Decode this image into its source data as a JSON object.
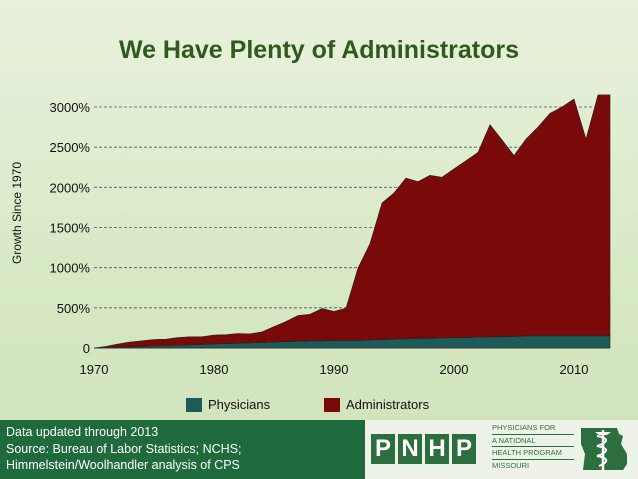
{
  "title": "We Have Plenty of Administrators",
  "chart_data": {
    "type": "area",
    "stacked": true,
    "title": "We Have Plenty of Administrators",
    "ylabel": "Growth Since 1970",
    "xlabel": "",
    "xlim": [
      1970,
      2013
    ],
    "ylim": [
      0,
      3000
    ],
    "yticks": [
      0,
      500,
      1000,
      1500,
      2000,
      2500,
      3000
    ],
    "ytick_labels": [
      "0",
      "500%",
      "1000%",
      "1500%",
      "2000%",
      "2500%",
      "3000%"
    ],
    "xticks": [
      1970,
      1980,
      1990,
      2000,
      2010
    ],
    "grid": "horizontal dashed",
    "legend_position": "bottom",
    "x": [
      1970,
      1971,
      1972,
      1973,
      1974,
      1975,
      1976,
      1977,
      1978,
      1979,
      1980,
      1981,
      1982,
      1983,
      1984,
      1985,
      1986,
      1987,
      1988,
      1989,
      1990,
      1991,
      1992,
      1993,
      1994,
      1995,
      1996,
      1997,
      1998,
      1999,
      2000,
      2001,
      2002,
      2003,
      2004,
      2005,
      2006,
      2007,
      2008,
      2009,
      2010,
      2011,
      2012,
      2013
    ],
    "series": [
      {
        "name": "Physicians",
        "color": "#1d5a5a",
        "values": [
          0,
          5,
          10,
          15,
          20,
          25,
          30,
          35,
          40,
          45,
          50,
          55,
          60,
          65,
          70,
          75,
          80,
          85,
          90,
          90,
          95,
          95,
          95,
          100,
          105,
          110,
          115,
          120,
          120,
          125,
          130,
          130,
          135,
          140,
          140,
          145,
          150,
          150,
          150,
          150,
          150,
          150,
          150,
          150
        ]
      },
      {
        "name": "Administrators",
        "color": "#7a0a0a",
        "values": [
          0,
          15,
          40,
          60,
          70,
          80,
          80,
          95,
          100,
          95,
          110,
          110,
          120,
          110,
          130,
          190,
          250,
          320,
          330,
          400,
          360,
          400,
          900,
          1200,
          1700,
          1820,
          2000,
          1950,
          2030,
          2000,
          2100,
          2200,
          2300,
          2640,
          2450,
          2250,
          2450,
          2600,
          2770,
          2850,
          2950,
          2450,
          3000,
          3000
        ]
      }
    ]
  },
  "legend": {
    "items": [
      {
        "label": "Physicians",
        "color": "#1d5a5a"
      },
      {
        "label": "Administrators",
        "color": "#7a0a0a"
      }
    ]
  },
  "footer": {
    "line1": "Data updated through 2013",
    "line2": "Source: Bureau of Labor Statistics; NCHS;",
    "line3": "Himmelstein/Woolhandler analysis of CPS"
  },
  "logo": {
    "letters": [
      "P",
      "N",
      "H",
      "P"
    ],
    "line1": "PHYSICIANS FOR",
    "line2": "A NATIONAL",
    "line3": "HEALTH PROGRAM",
    "line4": "MISSOURI",
    "icon": "caduceus-missouri-map-icon"
  }
}
